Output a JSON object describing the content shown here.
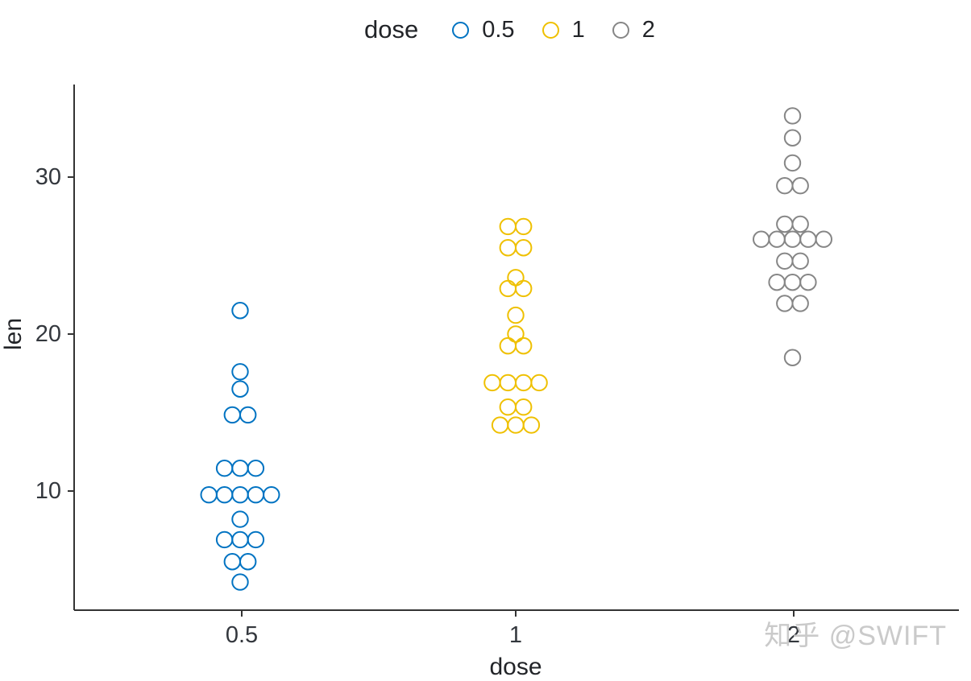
{
  "page": {
    "background": "#ffffff",
    "watermark_text": "知乎 @SWIFT",
    "watermark_color": "#c6c6c6"
  },
  "chart_data": {
    "type": "dotplot",
    "title": "",
    "xlabel": "dose",
    "ylabel": "len",
    "x_categories": [
      "0.5",
      "1",
      "2"
    ],
    "y_ticks": [
      10,
      20,
      30
    ],
    "ylim": [
      2.5,
      36
    ],
    "grid": false,
    "axis_color": "#333333",
    "text_color": "#33373d",
    "legend": {
      "title": "dose",
      "position": "top",
      "entries": [
        {
          "label": "0.5",
          "color": "#0073C2"
        },
        {
          "label": "1",
          "color": "#EFC000"
        },
        {
          "label": "2",
          "color": "#868686"
        }
      ]
    },
    "series": [
      {
        "name": "0.5",
        "color": "#0073C2",
        "values": [
          4.2,
          5.2,
          5.8,
          6.4,
          7.0,
          7.3,
          8.2,
          9.4,
          9.7,
          9.7,
          10.0,
          10.0,
          11.2,
          11.2,
          11.5,
          14.5,
          15.2,
          16.5,
          17.6,
          21.5
        ],
        "stacks": [
          {
            "y": 21.5,
            "count": 1
          },
          {
            "y": 17.6,
            "count": 1
          },
          {
            "y": 16.5,
            "count": 1
          },
          {
            "y": 14.85,
            "count": 2
          },
          {
            "y": 11.45,
            "count": 3
          },
          {
            "y": 9.76,
            "count": 5
          },
          {
            "y": 8.2,
            "count": 1
          },
          {
            "y": 6.9,
            "count": 3
          },
          {
            "y": 5.5,
            "count": 2
          },
          {
            "y": 4.2,
            "count": 1
          }
        ]
      },
      {
        "name": "1",
        "color": "#EFC000",
        "values": [
          13.6,
          14.5,
          14.5,
          15.2,
          15.5,
          16.5,
          16.5,
          17.3,
          17.3,
          18.8,
          19.7,
          20.0,
          21.2,
          22.5,
          23.3,
          23.6,
          25.2,
          25.8,
          26.4,
          27.3
        ],
        "stacks": [
          {
            "y": 26.85,
            "count": 2
          },
          {
            "y": 25.5,
            "count": 2
          },
          {
            "y": 23.6,
            "count": 1
          },
          {
            "y": 22.9,
            "count": 2
          },
          {
            "y": 21.2,
            "count": 1
          },
          {
            "y": 20.0,
            "count": 1
          },
          {
            "y": 19.25,
            "count": 2
          },
          {
            "y": 16.9,
            "count": 4
          },
          {
            "y": 15.35,
            "count": 2
          },
          {
            "y": 14.2,
            "count": 3
          }
        ]
      },
      {
        "name": "2",
        "color": "#868686",
        "values": [
          18.5,
          21.5,
          22.4,
          23.0,
          23.3,
          23.6,
          24.5,
          24.8,
          25.5,
          25.5,
          26.4,
          26.4,
          26.4,
          26.7,
          27.3,
          29.4,
          29.5,
          30.9,
          32.5,
          33.9
        ],
        "stacks": [
          {
            "y": 33.9,
            "count": 1
          },
          {
            "y": 32.5,
            "count": 1
          },
          {
            "y": 30.9,
            "count": 1
          },
          {
            "y": 29.45,
            "count": 2
          },
          {
            "y": 27.0,
            "count": 2
          },
          {
            "y": 26.04,
            "count": 5
          },
          {
            "y": 24.65,
            "count": 2
          },
          {
            "y": 23.3,
            "count": 3
          },
          {
            "y": 21.95,
            "count": 2
          },
          {
            "y": 18.5,
            "count": 1
          }
        ]
      }
    ]
  }
}
